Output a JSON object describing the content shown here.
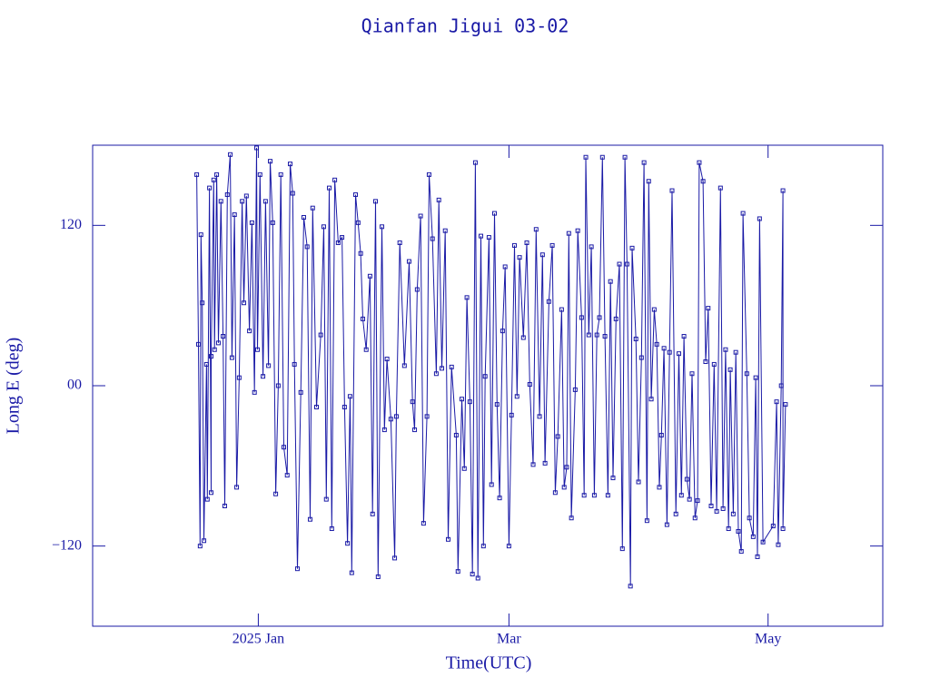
{
  "chart_data": {
    "type": "line",
    "title": "Qianfan Jigui 03-02",
    "x_label": "Time(UTC)",
    "y_label": "Long E (deg)",
    "color": "#1a1aa6",
    "xlim": [
      -39,
      147
    ],
    "ylim": [
      -180,
      180
    ],
    "xticks": [
      {
        "value": 0,
        "label": "2025 Jan"
      },
      {
        "value": 59,
        "label": "Mar"
      },
      {
        "value": 120,
        "label": "May"
      }
    ],
    "yticks": [
      {
        "value": -120,
        "label": "−120"
      },
      {
        "value": 0,
        "label": "00"
      },
      {
        "value": 120,
        "label": "120"
      }
    ],
    "x": [
      -14.5,
      -14.1,
      -13.7,
      -13.5,
      -13.2,
      -12.8,
      -12.2,
      -12.0,
      -11.5,
      -11.1,
      -11.1,
      -10.5,
      -10.3,
      -9.8,
      -9.4,
      -8.8,
      -8.3,
      -7.9,
      -7.3,
      -6.6,
      -6.2,
      -5.6,
      -5.1,
      -4.5,
      -3.8,
      -3.4,
      -2.8,
      -2.1,
      -1.5,
      -0.9,
      -0.4,
      -0.2,
      0.4,
      1.1,
      1.7,
      2.4,
      2.8,
      3.4,
      4.1,
      4.7,
      5.3,
      6.0,
      6.8,
      7.5,
      8.1,
      8.5,
      9.2,
      10.0,
      10.7,
      11.5,
      12.2,
      12.8,
      13.7,
      14.7,
      15.4,
      16.0,
      16.7,
      17.3,
      18.0,
      18.8,
      19.7,
      20.3,
      21.0,
      21.6,
      22.0,
      22.9,
      23.5,
      24.1,
      24.6,
      25.4,
      26.3,
      26.9,
      27.6,
      28.2,
      29.1,
      29.7,
      30.3,
      31.2,
      32.1,
      32.5,
      33.3,
      34.4,
      35.5,
      36.3,
      36.8,
      37.4,
      38.2,
      38.9,
      39.7,
      40.2,
      41.0,
      41.9,
      42.5,
      43.2,
      44.0,
      44.7,
      45.5,
      46.6,
      47.0,
      47.9,
      48.5,
      49.1,
      49.8,
      50.4,
      51.1,
      51.7,
      52.4,
      53.0,
      53.4,
      54.3,
      54.9,
      55.6,
      56.2,
      56.8,
      57.5,
      58.1,
      59.0,
      59.6,
      60.3,
      60.9,
      61.5,
      62.4,
      63.2,
      63.9,
      64.7,
      65.4,
      66.2,
      66.9,
      67.5,
      68.4,
      69.2,
      69.9,
      70.5,
      71.4,
      72.0,
      72.6,
      73.1,
      73.7,
      74.6,
      75.2,
      76.1,
      76.7,
      77.1,
      77.8,
      78.4,
      79.1,
      79.7,
      80.3,
      81.0,
      81.6,
      82.3,
      82.9,
      83.5,
      84.2,
      85.0,
      85.7,
      86.3,
      86.8,
      87.6,
      88.0,
      88.9,
      89.5,
      90.2,
      90.8,
      91.5,
      91.9,
      92.5,
      93.2,
      93.8,
      94.4,
      94.9,
      95.5,
      96.2,
      96.8,
      97.4,
      98.3,
      99.0,
      99.6,
      100.2,
      100.9,
      101.5,
      102.1,
      102.8,
      103.4,
      103.8,
      104.7,
      105.3,
      105.9,
      106.6,
      107.3,
      107.9,
      108.8,
      109.4,
      110.0,
      110.7,
      111.1,
      111.8,
      112.4,
      113.0,
      113.7,
      114.1,
      115.0,
      115.6,
      116.5,
      117.1,
      117.5,
      118.0,
      118.8,
      121.2,
      122.0,
      122.4,
      123.1,
      123.5,
      123.5,
      124.1
    ],
    "values": [
      158,
      31,
      -120,
      113,
      62,
      -116,
      16,
      -85,
      148,
      -80,
      22,
      154,
      27,
      158,
      32,
      138,
      37,
      -90,
      143,
      173,
      21,
      128,
      -76,
      6,
      138,
      62,
      142,
      41,
      122,
      -5,
      178,
      27,
      158,
      7,
      138,
      15,
      168,
      122,
      -81,
      0,
      158,
      -46,
      -67,
      166,
      144,
      16,
      -137,
      -5,
      126,
      104,
      -100,
      133,
      -16,
      38,
      119,
      -85,
      148,
      -107,
      154,
      107,
      111,
      -16,
      -118,
      -8,
      -140,
      143,
      122,
      99,
      50,
      27,
      82,
      -96,
      138,
      -143,
      119,
      -33,
      20,
      -25,
      -129,
      -23,
      107,
      15,
      93,
      -12,
      -33,
      72,
      127,
      -103,
      -23,
      158,
      110,
      9,
      139,
      13,
      116,
      -115,
      14,
      -37,
      -139,
      -10,
      -62,
      66,
      -12,
      -141,
      167,
      -144,
      112,
      -120,
      7,
      111,
      -74,
      129,
      -14,
      -84,
      41,
      89,
      -120,
      -22,
      105,
      -8,
      96,
      36,
      107,
      1,
      -59,
      117,
      -23,
      98,
      -58,
      63,
      105,
      -80,
      -38,
      57,
      -76,
      -61,
      114,
      -99,
      -3,
      116,
      51,
      -82,
      171,
      38,
      104,
      -82,
      38,
      51,
      171,
      37,
      -82,
      78,
      -69,
      50,
      91,
      -122,
      171,
      91,
      -150,
      103,
      35,
      -72,
      21,
      167,
      -101,
      153,
      -10,
      57,
      31,
      -76,
      -37,
      28,
      -104,
      25,
      146,
      -96,
      24,
      -82,
      37,
      -70,
      -85,
      9,
      -99,
      -86,
      167,
      153,
      18,
      58,
      -90,
      16,
      -94,
      148,
      -92,
      27,
      -107,
      12,
      -96,
      25,
      -109,
      -124,
      129,
      9,
      -99,
      -113,
      6,
      -128,
      125,
      -117,
      -105,
      -12,
      -119,
      0,
      146,
      -107,
      -14
    ]
  }
}
